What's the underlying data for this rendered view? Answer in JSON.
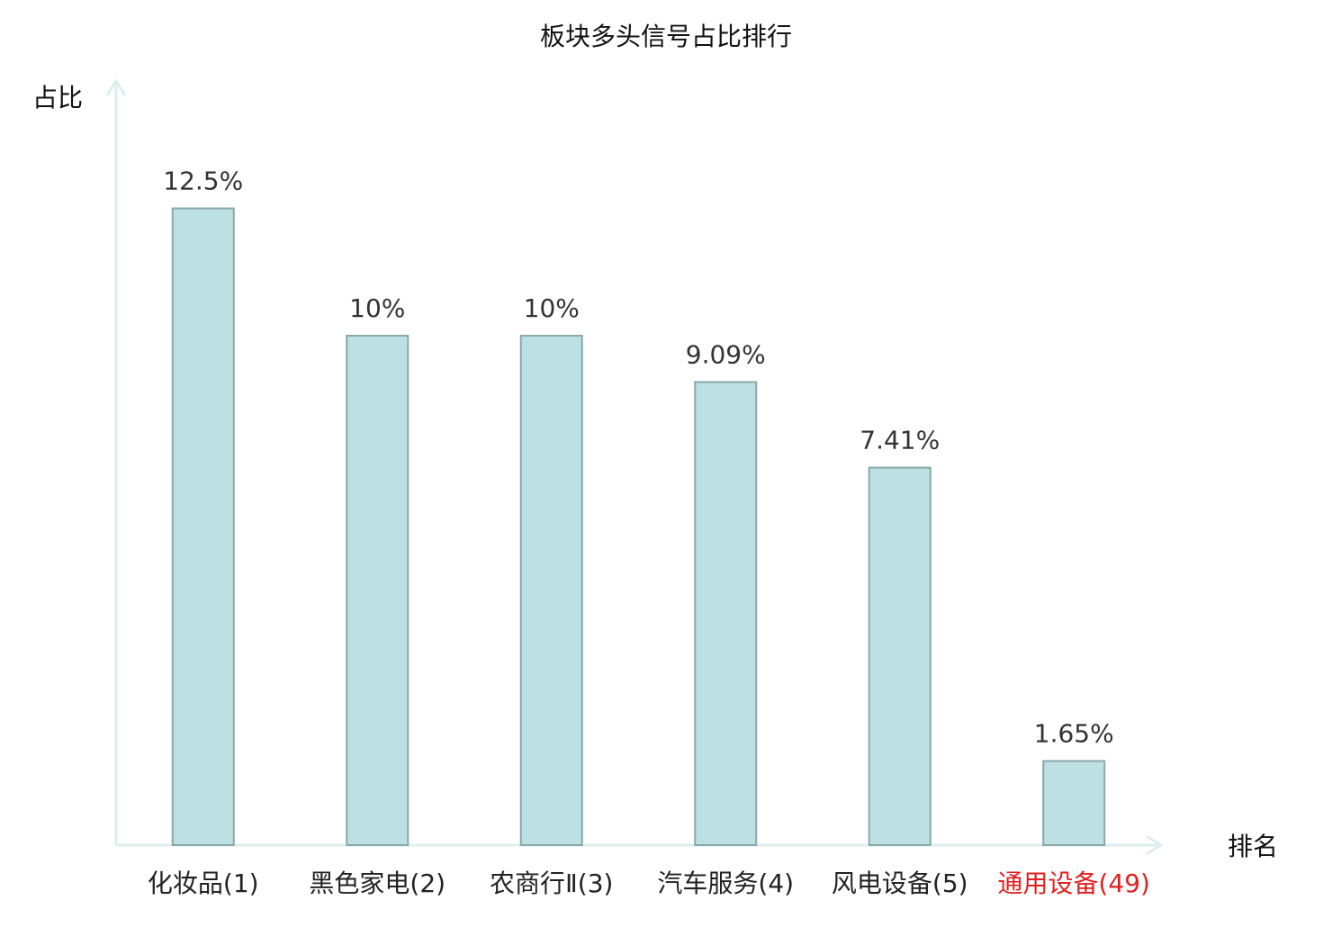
{
  "chart_data": {
    "type": "bar",
    "title": "板块多头信号占比排行",
    "y_label": "占比",
    "x_label": "排名",
    "categories": [
      "化妆品(1)",
      "黑色家电(2)",
      "农商行Ⅱ(3)",
      "汽车服务(4)",
      "风电设备(5)",
      "通用设备(49)"
    ],
    "label_colors": [
      "#222222",
      "#222222",
      "#222222",
      "#222222",
      "#222222",
      "#e02020"
    ],
    "values": [
      12.5,
      10,
      10,
      9.09,
      7.41,
      1.65
    ],
    "value_labels": [
      "12.5%",
      "10%",
      "10%",
      "9.09%",
      "7.41%",
      "1.65%"
    ],
    "color": "#bde0e2",
    "ylim": [
      0,
      15
    ],
    "grid": false
  }
}
